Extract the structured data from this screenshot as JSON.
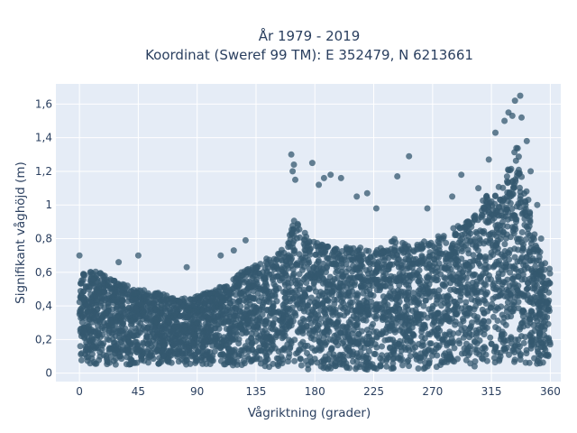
{
  "chart_data": {
    "type": "scatter",
    "title": [
      "År 1979 - 2019",
      "Koordinat (Sweref 99 TM): E 352479, N 6213661"
    ],
    "xlabel": "Vågriktning (grader)",
    "ylabel": "Signifikant våghöjd (m)",
    "xlim": [
      -18,
      368
    ],
    "ylim": [
      -0.05,
      1.72
    ],
    "x_ticks": [
      0,
      45,
      90,
      135,
      180,
      225,
      270,
      315,
      360
    ],
    "x_tick_labels": [
      "0",
      "45",
      "90",
      "135",
      "180",
      "225",
      "270",
      "315",
      "360"
    ],
    "y_ticks": [
      0,
      0.2,
      0.4,
      0.6,
      0.8,
      1.0,
      1.2,
      1.4,
      1.6
    ],
    "y_tick_labels": [
      "0",
      "0,2",
      "0,4",
      "0,6",
      "0,8",
      "1",
      "1,2",
      "1,4",
      "1,6"
    ],
    "grid": true,
    "legend": "none",
    "colors": {
      "marker": "#34586f",
      "plot_bg": "#e5ecf6",
      "grid": "#ffffff",
      "text": "#2a3f5f"
    },
    "dense_envelope": {
      "x": [
        0,
        15,
        30,
        45,
        60,
        75,
        90,
        105,
        120,
        135,
        150,
        160,
        165,
        175,
        180,
        195,
        210,
        225,
        240,
        255,
        270,
        285,
        300,
        310,
        320,
        330,
        335,
        340,
        345,
        350,
        360
      ],
      "y_upper": [
        0.62,
        0.6,
        0.55,
        0.5,
        0.48,
        0.44,
        0.46,
        0.5,
        0.58,
        0.66,
        0.7,
        0.8,
        0.95,
        0.82,
        0.78,
        0.74,
        0.76,
        0.72,
        0.8,
        0.76,
        0.8,
        0.86,
        0.92,
        1.05,
        1.1,
        1.25,
        1.4,
        1.2,
        0.95,
        0.75,
        0.62
      ],
      "y_lower": [
        0.06,
        0.05,
        0.05,
        0.05,
        0.05,
        0.05,
        0.05,
        0.05,
        0.04,
        0.04,
        0.03,
        0.03,
        0.02,
        0.02,
        0.02,
        0.02,
        0.02,
        0.02,
        0.02,
        0.02,
        0.03,
        0.03,
        0.04,
        0.04,
        0.05,
        0.05,
        0.05,
        0.05,
        0.05,
        0.05,
        0.06
      ]
    },
    "outliers": [
      {
        "x": 0,
        "y": 0.7
      },
      {
        "x": 30,
        "y": 0.66
      },
      {
        "x": 45,
        "y": 0.7
      },
      {
        "x": 82,
        "y": 0.63
      },
      {
        "x": 108,
        "y": 0.7
      },
      {
        "x": 118,
        "y": 0.73
      },
      {
        "x": 127,
        "y": 0.79
      },
      {
        "x": 162,
        "y": 1.3
      },
      {
        "x": 163,
        "y": 1.2
      },
      {
        "x": 164,
        "y": 1.24
      },
      {
        "x": 165,
        "y": 1.15
      },
      {
        "x": 178,
        "y": 1.25
      },
      {
        "x": 183,
        "y": 1.12
      },
      {
        "x": 187,
        "y": 1.16
      },
      {
        "x": 192,
        "y": 1.18
      },
      {
        "x": 200,
        "y": 1.16
      },
      {
        "x": 212,
        "y": 1.05
      },
      {
        "x": 220,
        "y": 1.07
      },
      {
        "x": 227,
        "y": 0.98
      },
      {
        "x": 243,
        "y": 1.17
      },
      {
        "x": 252,
        "y": 1.29
      },
      {
        "x": 266,
        "y": 0.98
      },
      {
        "x": 285,
        "y": 1.05
      },
      {
        "x": 292,
        "y": 1.18
      },
      {
        "x": 305,
        "y": 1.1
      },
      {
        "x": 313,
        "y": 1.27
      },
      {
        "x": 318,
        "y": 1.43
      },
      {
        "x": 325,
        "y": 1.5
      },
      {
        "x": 328,
        "y": 1.55
      },
      {
        "x": 331,
        "y": 1.53
      },
      {
        "x": 333,
        "y": 1.62
      },
      {
        "x": 337,
        "y": 1.65
      },
      {
        "x": 338,
        "y": 1.52
      },
      {
        "x": 342,
        "y": 1.38
      },
      {
        "x": 345,
        "y": 1.2
      },
      {
        "x": 350,
        "y": 1.0
      },
      {
        "x": 353,
        "y": 0.8
      }
    ]
  }
}
